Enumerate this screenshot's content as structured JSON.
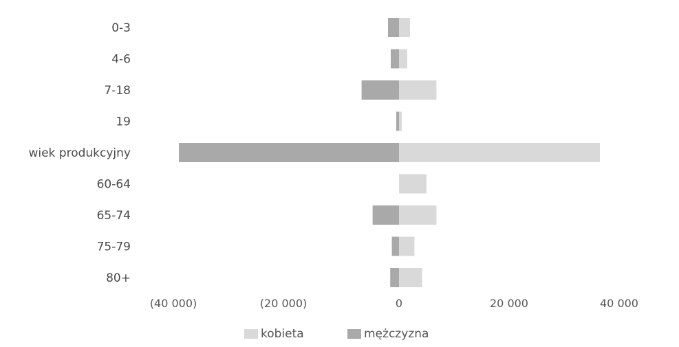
{
  "chart_data": {
    "type": "bar",
    "orientation": "horizontal",
    "layout": "population-pyramid",
    "categories": [
      "0-3",
      "4-6",
      "7-18",
      "19",
      "wiek produkcyjny",
      "60-64",
      "65-74",
      "75-79",
      "80+"
    ],
    "series": [
      {
        "name": "mężczyzna",
        "side": "left",
        "color": "#a9a9a9",
        "values": [
          2000,
          1500,
          6800,
          500,
          40000,
          0,
          4800,
          1300,
          1600
        ]
      },
      {
        "name": "kobieta",
        "side": "right",
        "color": "#d9d9d9",
        "values": [
          2000,
          1500,
          6800,
          500,
          36500,
          5000,
          6800,
          2800,
          4200
        ]
      }
    ],
    "x_ticks": [
      {
        "value": -40000,
        "label": "(40 000)"
      },
      {
        "value": -20000,
        "label": "(20 000)"
      },
      {
        "value": 0,
        "label": "0"
      },
      {
        "value": 20000,
        "label": "20 000"
      },
      {
        "value": 40000,
        "label": "40 000"
      }
    ],
    "xlim": [
      -40000,
      40000
    ],
    "grid": false,
    "legend": {
      "position": "bottom",
      "items": [
        {
          "label": "kobieta",
          "color": "#d9d9d9"
        },
        {
          "label": "mężczyzna",
          "color": "#a9a9a9"
        }
      ]
    },
    "title": "",
    "xlabel": "",
    "ylabel": ""
  }
}
